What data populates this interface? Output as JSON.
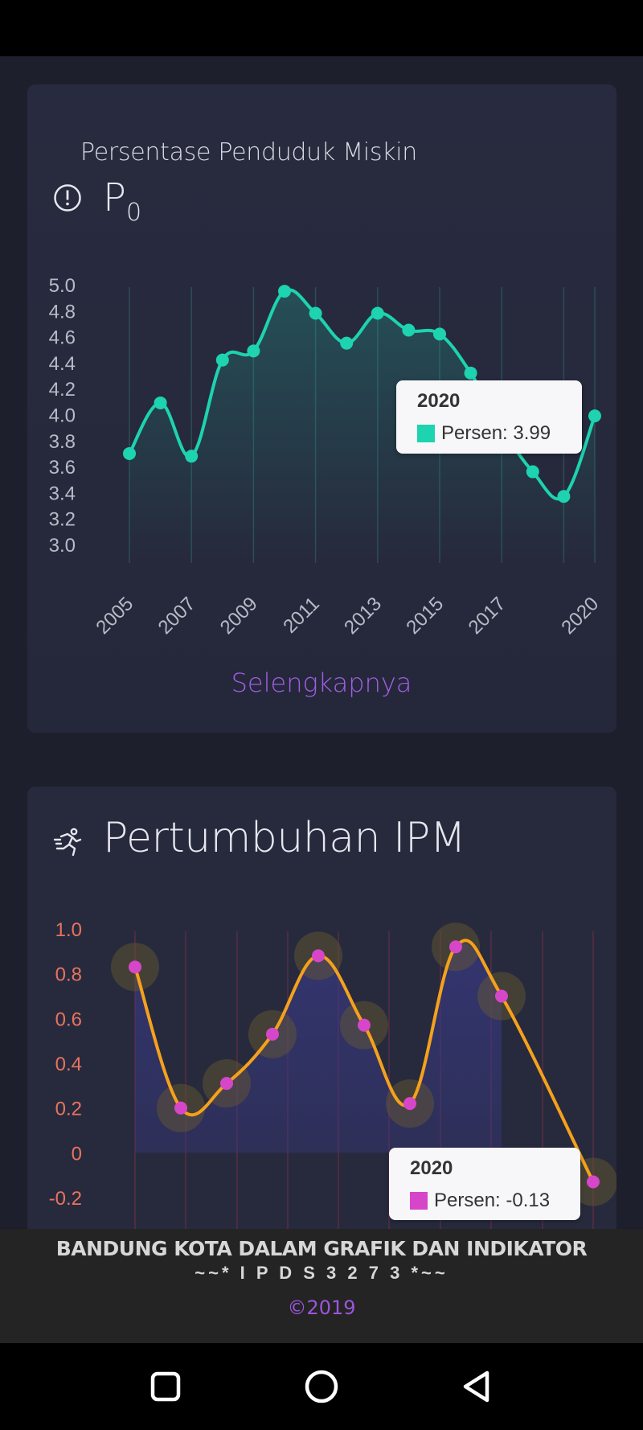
{
  "card1": {
    "subtitle": "Persentase Penduduk Miskin",
    "title_main": "P",
    "title_sub": "0",
    "link": "Selengkapnya",
    "icon": "alert-circle-icon"
  },
  "card2": {
    "title": "Pertumbuhan IPM",
    "icon": "running-person-icon"
  },
  "tooltip1": {
    "year": "2020",
    "label": "Persen: 3.99"
  },
  "tooltip2": {
    "year": "2020",
    "label": "Persen: -0.13"
  },
  "footer": {
    "line1": "BANDUNG KOTA DALAM GRAFIK DAN INDIKATOR",
    "line2": "~~* I P D S 3 2 7 3 *~~",
    "copyright": "©2019"
  },
  "colors": {
    "teal": "#1dd3b0",
    "magenta": "#d646c8",
    "orange": "#f5a11c",
    "purple_link": "#a25ee6",
    "axis_text_1": "#b8bac6",
    "axis_text_2": "#e8735f"
  },
  "chart_data": [
    {
      "type": "line",
      "series": [
        {
          "name": "Persen",
          "x": [
            2005,
            2006,
            2007,
            2008,
            2009,
            2010,
            2011,
            2012,
            2013,
            2014,
            2015,
            2016,
            2017,
            2018,
            2019,
            2020
          ],
          "values": [
            3.7,
            4.09,
            3.68,
            4.42,
            4.49,
            4.95,
            4.78,
            4.55,
            4.78,
            4.65,
            4.62,
            4.32,
            3.9,
            3.56,
            3.37,
            3.99
          ]
        }
      ],
      "tick_labels_x": [
        "2005",
        "2007",
        "2009",
        "2011",
        "2013",
        "2015",
        "2017",
        "2020"
      ],
      "tick_labels_y": [
        "3.0",
        "3.2",
        "3.4",
        "3.6",
        "3.8",
        "4.0",
        "4.2",
        "4.4",
        "4.6",
        "4.8",
        "5.0"
      ],
      "ylim": [
        3.0,
        5.0
      ]
    },
    {
      "type": "line",
      "series": [
        {
          "name": "Persen",
          "x": [
            2010,
            2011,
            2012,
            2013,
            2014,
            2015,
            2016,
            2017,
            2018,
            2019,
            2020
          ],
          "values": [
            0.83,
            0.2,
            0.31,
            0.53,
            0.88,
            0.57,
            0.22,
            0.92,
            0.7,
            null,
            -0.13
          ]
        }
      ],
      "tick_labels_y": [
        "-0.2",
        "0",
        "0.2",
        "0.4",
        "0.6",
        "0.8",
        "1.0"
      ],
      "ylim": [
        -0.2,
        1.0
      ]
    }
  ],
  "nav": {
    "home_icon": "square-home-icon",
    "circle_icon": "circle-home-icon",
    "back_icon": "triangle-back-icon"
  }
}
